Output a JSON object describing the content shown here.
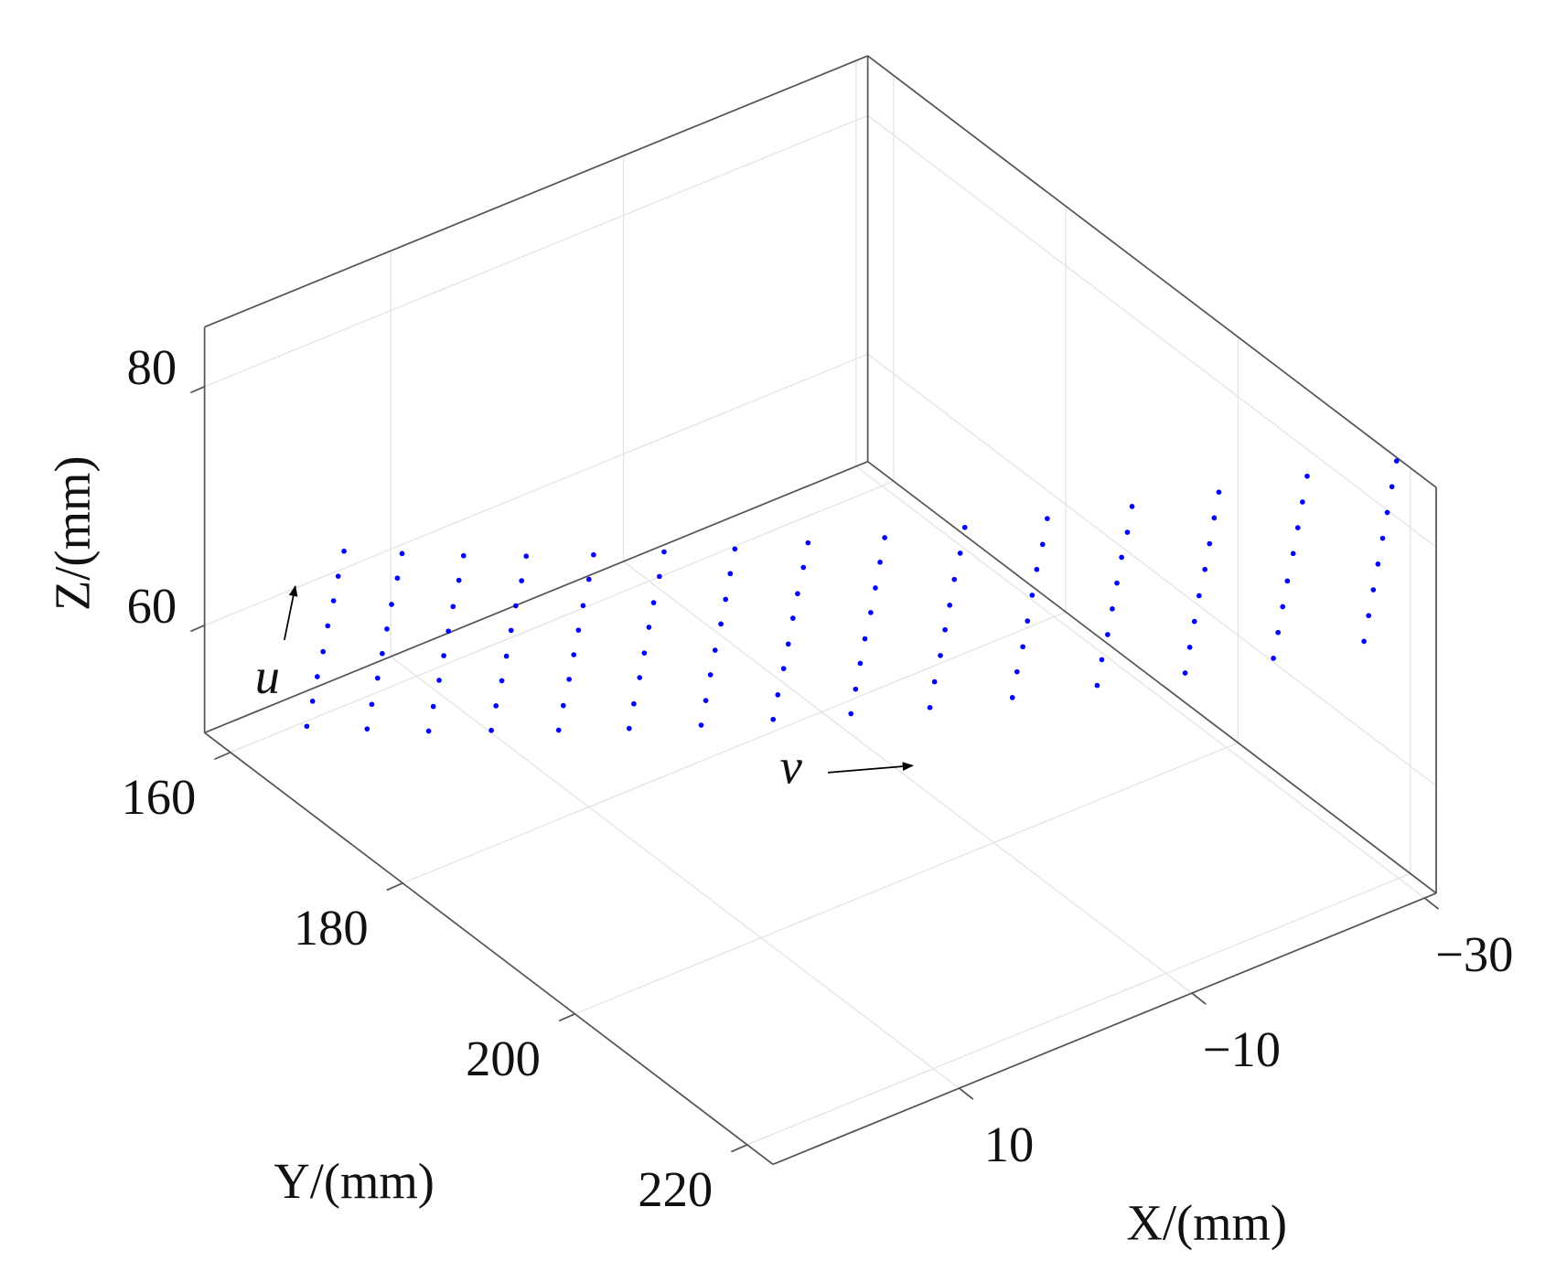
{
  "chart_data": {
    "type": "scatter3d",
    "xlabel": "X/(mm)",
    "ylabel": "Y/(mm)",
    "zlabel": "Z/(mm)",
    "xlim": [
      -31,
      26
    ],
    "ylim": [
      157,
      223
    ],
    "zlim": [
      51,
      85
    ],
    "xticks": [
      {
        "value": -30,
        "label": "−30"
      },
      {
        "value": -10,
        "label": "−10"
      },
      10
    ],
    "yticks": [
      160,
      180,
      200,
      220
    ],
    "zticks": [
      60,
      80
    ],
    "grid": true,
    "color": "#0000ff",
    "annotations": [
      {
        "text": "u"
      },
      {
        "text": "v"
      }
    ],
    "series": [
      {
        "x": [
          22.1,
          21.6,
          21.2,
          20.7,
          20.3,
          19.8,
          19.4,
          18.9
        ],
        "y": [
          163.6,
          163.6,
          163.6,
          163.6,
          163.6,
          163.6,
          163.6,
          163.6
        ],
        "z": [
          53.6,
          55.5,
          57.4,
          59.3,
          61.3,
          63.2,
          65.1,
          67.0
        ]
      },
      {
        "x": [
          19.8,
          19.4,
          18.9,
          18.5,
          18.1,
          17.7,
          17.2,
          16.8
        ],
        "y": [
          167.5,
          167.5,
          167.5,
          167.5,
          167.5,
          167.5,
          167.5,
          167.5
        ],
        "z": [
          54.6,
          56.5,
          58.5,
          60.4,
          62.3,
          64.2,
          66.2,
          68.1
        ]
      },
      {
        "x": [
          17.4,
          17.0,
          16.5,
          16.1,
          15.7,
          15.3,
          14.8,
          14.4
        ],
        "y": [
          171.4,
          171.4,
          171.4,
          171.4,
          171.4,
          171.4,
          171.4,
          171.4
        ],
        "z": [
          55.6,
          57.5,
          59.5,
          61.4,
          63.3,
          65.2,
          67.2,
          69.1
        ]
      },
      {
        "x": [
          14.9,
          14.5,
          14.0,
          13.6,
          13.2,
          12.8,
          12.3,
          11.9
        ],
        "y": [
          175.3,
          175.3,
          175.3,
          175.3,
          175.3,
          175.3,
          175.3,
          175.3
        ],
        "z": [
          56.8,
          58.7,
          60.6,
          62.5,
          64.5,
          66.4,
          68.3,
          70.2
        ]
      },
      {
        "x": [
          12.0,
          11.6,
          11.1,
          10.7,
          10.3,
          9.9,
          9.4,
          9.0
        ],
        "y": [
          179.2,
          179.2,
          179.2,
          179.2,
          179.2,
          179.2,
          179.2,
          179.2
        ],
        "z": [
          57.8,
          59.7,
          61.7,
          63.6,
          65.5,
          67.4,
          69.4,
          71.3
        ]
      },
      {
        "x": [
          8.9,
          8.5,
          8.0,
          7.6,
          7.2,
          6.8,
          6.3,
          5.9
        ],
        "y": [
          183.2,
          183.2,
          183.2,
          183.2,
          183.2,
          183.2,
          183.2,
          183.2
        ],
        "z": [
          58.9,
          60.8,
          62.8,
          64.7,
          66.7,
          68.6,
          70.6,
          72.5
        ]
      },
      {
        "x": [
          5.6,
          5.2,
          4.8,
          4.4,
          3.9,
          3.5,
          3.1,
          2.7
        ],
        "y": [
          187.1,
          187.1,
          187.1,
          187.1,
          187.1,
          187.1,
          187.1,
          187.1
        ],
        "z": [
          60.0,
          61.9,
          63.9,
          65.8,
          67.8,
          69.7,
          71.7,
          73.6
        ]
      },
      {
        "x": [
          2.3,
          1.9,
          1.4,
          1.0,
          0.6,
          0.2,
          -0.3,
          -0.7
        ],
        "y": [
          191.0,
          191.0,
          191.0,
          191.0,
          191.0,
          191.0,
          191.0,
          191.0
        ],
        "z": [
          61.3,
          63.2,
          65.2,
          67.1,
          69.1,
          71.0,
          73.0,
          74.9
        ]
      },
      {
        "x": [
          -1.5,
          -1.9,
          -2.3,
          -2.7,
          -3.2,
          -3.6,
          -4.0,
          -4.4
        ],
        "y": [
          194.9,
          194.9,
          194.9,
          194.9,
          194.9,
          194.9,
          194.9,
          194.9
        ],
        "z": [
          62.4,
          64.3,
          66.3,
          68.2,
          70.2,
          72.1,
          74.1,
          76.0
        ]
      },
      {
        "x": [
          -5.4,
          -5.8,
          -6.3,
          -6.7,
          -7.1,
          -7.5,
          -8.0,
          -8.4
        ],
        "y": [
          198.8,
          198.8,
          198.8,
          198.8,
          198.8,
          198.8,
          198.8,
          198.8
        ],
        "z": [
          63.5,
          65.5,
          67.5,
          69.5,
          71.4,
          73.4,
          75.4,
          77.4
        ]
      },
      {
        "x": [
          -9.6,
          -10.0,
          -10.5,
          -10.9,
          -11.3,
          -11.7,
          -12.2,
          -12.6
        ],
        "y": [
          202.7,
          202.7,
          202.7,
          202.7,
          202.7,
          202.7,
          202.7,
          202.7
        ],
        "z": [
          64.8,
          66.8,
          68.7,
          70.7,
          72.7,
          74.7,
          76.6,
          78.6
        ]
      },
      {
        "x": [
          -14.0,
          -14.4,
          -14.9,
          -15.3,
          -15.7,
          -16.1,
          -16.6,
          -17.0
        ],
        "y": [
          206.6,
          206.6,
          206.6,
          206.6,
          206.6,
          206.6,
          206.6,
          206.6
        ],
        "z": [
          66.2,
          68.2,
          70.1,
          72.1,
          74.1,
          76.1,
          78.0,
          80.0
        ]
      },
      {
        "x": [
          -18.6,
          -19.0,
          -19.4,
          -19.8,
          -20.3,
          -20.7,
          -21.1,
          -21.5
        ],
        "y": [
          210.6,
          210.6,
          210.6,
          210.6,
          210.6,
          210.6,
          210.6,
          210.6
        ],
        "z": [
          67.6,
          69.6,
          71.6,
          73.6,
          75.6,
          77.6,
          79.6,
          81.6
        ]
      },
      {
        "x": [
          -23.3,
          -23.7,
          -24.1,
          -24.5,
          -25.0,
          -25.4,
          -25.8,
          -26.2
        ],
        "y": [
          214.5,
          214.5,
          214.5,
          214.5,
          214.5,
          214.5,
          214.5,
          214.5
        ],
        "z": [
          69.1,
          71.1,
          73.1,
          75.1,
          77.2,
          79.2,
          81.2,
          83.2
        ]
      },
      {
        "x": [
          -28.2,
          -28.6,
          -29.0,
          -29.4,
          -29.8,
          -30.2,
          -30.6,
          -31.0
        ],
        "y": [
          218.4,
          218.4,
          218.4,
          218.4,
          218.4,
          218.4,
          218.4,
          218.4
        ],
        "z": [
          70.7,
          72.7,
          74.7,
          76.7,
          78.7,
          80.7,
          82.7,
          84.7
        ]
      }
    ]
  }
}
